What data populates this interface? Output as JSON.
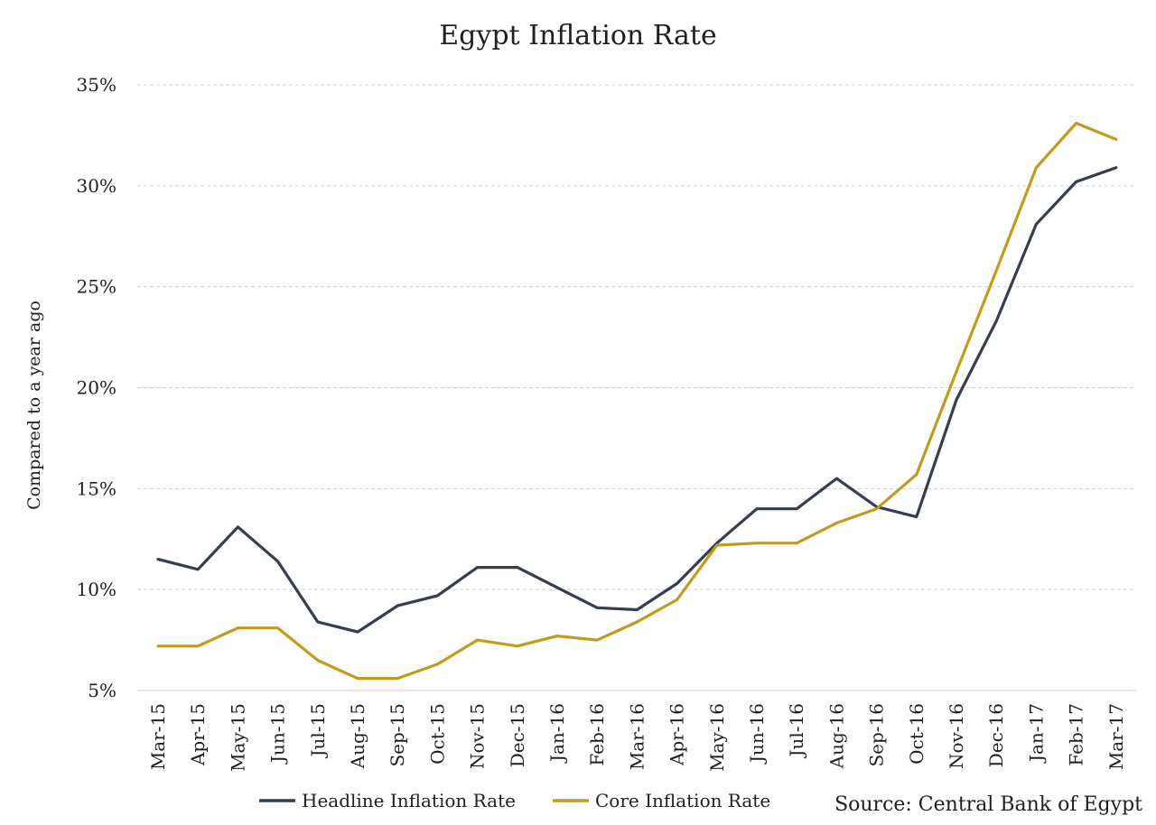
{
  "chart_data": {
    "type": "line",
    "title": "Egypt Inflation Rate",
    "xlabel": "",
    "ylabel": "Compared to a year ago",
    "categories": [
      "Mar-15",
      "Apr-15",
      "May-15",
      "Jun-15",
      "Jul-15",
      "Aug-15",
      "Sep-15",
      "Oct-15",
      "Nov-15",
      "Dec-15",
      "Jan-16",
      "Feb-16",
      "Mar-16",
      "Apr-16",
      "May-16",
      "Jun-16",
      "Jul-16",
      "Aug-16",
      "Sep-16",
      "Oct-16",
      "Nov-16",
      "Dec-16",
      "Jan-17",
      "Feb-17",
      "Mar-17"
    ],
    "ylim": [
      5,
      35
    ],
    "yticks": [
      5,
      10,
      15,
      20,
      25,
      30,
      35
    ],
    "ytick_labels": [
      "5%",
      "10%",
      "15%",
      "20%",
      "25%",
      "30%",
      "35%"
    ],
    "grid": true,
    "legend_position": "bottom",
    "series": [
      {
        "name": "Headline Inflation Rate",
        "color": "#363d4c",
        "values": [
          11.5,
          11.0,
          13.1,
          11.4,
          8.4,
          7.9,
          9.2,
          9.7,
          11.1,
          11.1,
          10.1,
          9.1,
          9.0,
          10.3,
          12.3,
          14.0,
          14.0,
          15.5,
          14.1,
          13.6,
          19.4,
          23.3,
          28.1,
          30.2,
          30.9
        ]
      },
      {
        "name": "Core Inflation Rate",
        "color": "#c29a20",
        "values": [
          7.2,
          7.2,
          8.1,
          8.1,
          6.5,
          5.6,
          5.6,
          6.3,
          7.5,
          7.2,
          7.7,
          7.5,
          8.4,
          9.5,
          12.2,
          12.3,
          12.3,
          13.3,
          14.0,
          15.7,
          20.8,
          25.8,
          30.9,
          33.1,
          32.3
        ]
      }
    ],
    "source": "Source: Central Bank of Egypt"
  }
}
